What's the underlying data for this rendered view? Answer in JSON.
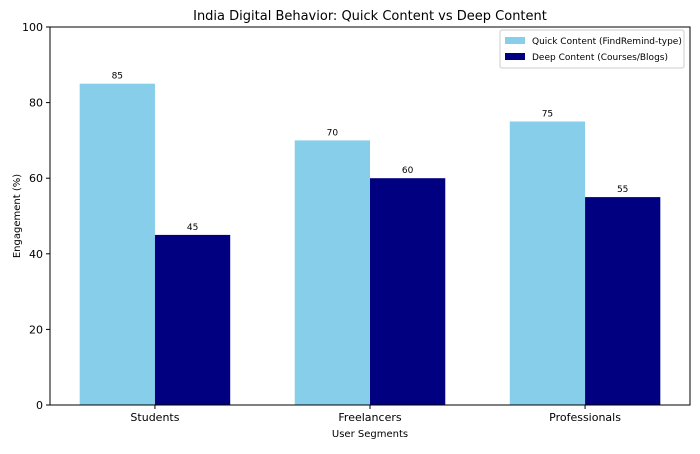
{
  "chart_data": {
    "type": "bar",
    "title": "India Digital Behavior: Quick Content vs Deep Content",
    "xlabel": "User Segments",
    "ylabel": "Engagement (%)",
    "categories": [
      "Students",
      "Freelancers",
      "Professionals"
    ],
    "series": [
      {
        "name": "Quick Content (FindRemind-type)",
        "values": [
          85,
          70,
          75
        ],
        "color": "#87CEEB"
      },
      {
        "name": "Deep Content (Courses/Blogs)",
        "values": [
          45,
          60,
          55
        ],
        "color": "#000080"
      }
    ],
    "ylim": [
      0,
      100
    ],
    "yticks": [
      0,
      20,
      40,
      60,
      80,
      100
    ],
    "grid": false,
    "legend": "top-right",
    "data_labels": true
  }
}
